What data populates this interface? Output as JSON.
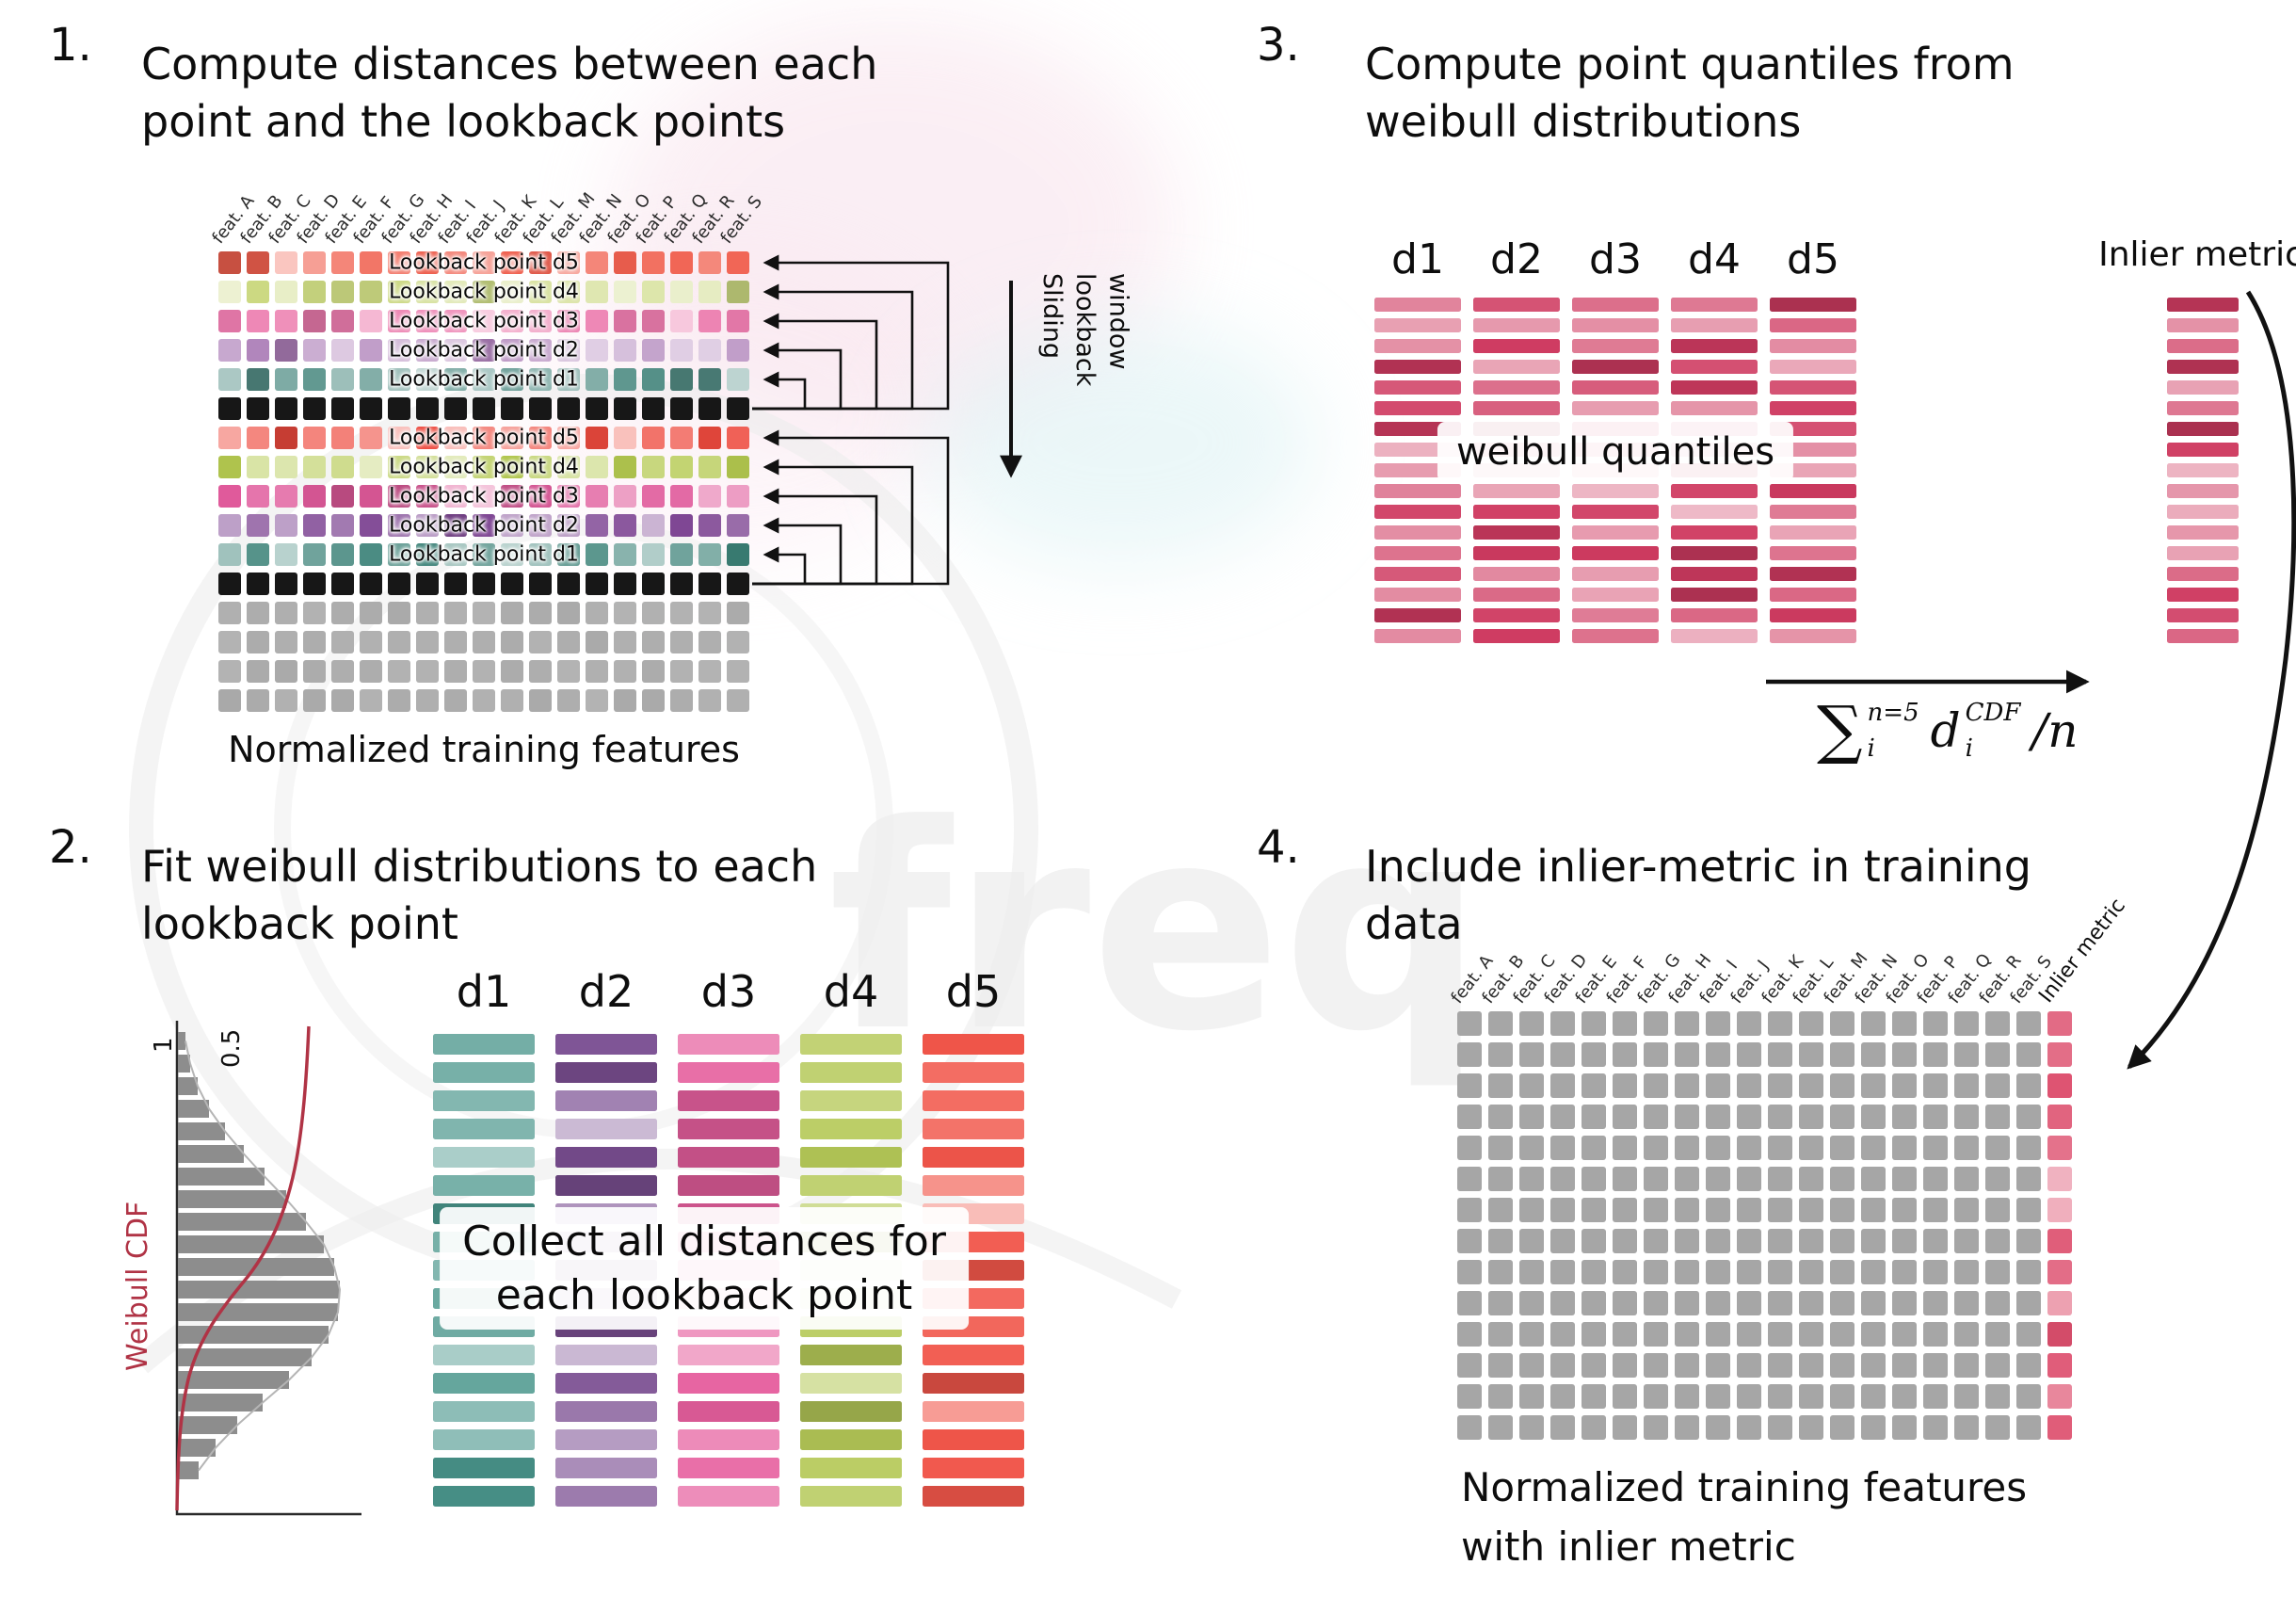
{
  "step1": {
    "number": "1.",
    "title": [
      "Compute distances between each",
      "point and the lookback points"
    ],
    "feature_columns": [
      "feat. A",
      "feat. B",
      "feat. C",
      "feat. D",
      "feat. E",
      "feat. F",
      "feat. G",
      "feat. H",
      "feat. I",
      "feat. J",
      "feat. K",
      "feat. L",
      "feat. M",
      "feat. N",
      "feat. O",
      "feat. P",
      "feat. Q",
      "feat. R",
      "feat. S"
    ],
    "rows": [
      {
        "kind": "lookback",
        "label": "Lookback point d5",
        "color": "#f0604f"
      },
      {
        "kind": "lookback",
        "label": "Lookback point d4",
        "color": "#ccd982"
      },
      {
        "kind": "lookback",
        "label": "Lookback point d3",
        "color": "#ec7cae"
      },
      {
        "kind": "lookback",
        "label": "Lookback point d2",
        "color": "#ab7cb6"
      },
      {
        "kind": "lookback",
        "label": "Lookback point d1",
        "color": "#569189"
      },
      {
        "kind": "current",
        "color": "#171717"
      },
      {
        "kind": "lookback",
        "label": "Lookback point d5",
        "color": "#ee4a3e"
      },
      {
        "kind": "lookback",
        "label": "Lookback point d4",
        "color": "#b4c94f"
      },
      {
        "kind": "lookback",
        "label": "Lookback point d3",
        "color": "#e05a9b"
      },
      {
        "kind": "lookback",
        "label": "Lookback point d2",
        "color": "#7f4794"
      },
      {
        "kind": "lookback",
        "label": "Lookback point d1",
        "color": "#3c8278"
      },
      {
        "kind": "current",
        "color": "#171717"
      },
      {
        "kind": "plain",
        "color": "#a9a9a9"
      },
      {
        "kind": "plain",
        "color": "#a9a9a9"
      },
      {
        "kind": "plain",
        "color": "#a9a9a9"
      },
      {
        "kind": "plain",
        "color": "#a9a9a9"
      }
    ],
    "sliding": [
      "Sliding",
      "lookback",
      "window"
    ],
    "caption": "Normalized training features"
  },
  "step2": {
    "number": "2.",
    "title": [
      "Fit weibull distributions to each",
      "lookback point"
    ],
    "plot": {
      "label": "Weibull CDF",
      "ticks": [
        "1",
        "0.5"
      ],
      "curve_color": "#b03345",
      "bar_color": "#8d8d8d",
      "bars": [
        8,
        13,
        21,
        33,
        50,
        70,
        92,
        115,
        136,
        155,
        166,
        172,
        170,
        160,
        142,
        118,
        90,
        63,
        40,
        22
      ]
    },
    "columns": [
      {
        "label": "d1",
        "color": "#4a968c"
      },
      {
        "label": "d2",
        "color": "#7b4f92"
      },
      {
        "label": "d3",
        "color": "#e65f9e"
      },
      {
        "label": "d4",
        "color": "#b5c958"
      },
      {
        "label": "d5",
        "color": "#f1564a"
      }
    ],
    "bars_per_column": 17,
    "overlay": [
      "Collect all distances for",
      "each lookback point"
    ]
  },
  "step3": {
    "number": "3.",
    "title": [
      "Compute point quantiles from",
      "weibull distributions"
    ],
    "column_labels": [
      "d1",
      "d2",
      "d3",
      "d4",
      "d5"
    ],
    "bar_color": "#cf3b61",
    "bars_per_column": 17,
    "overlay": "weibull quantiles",
    "inlier_label": "Inlier metric",
    "formula": {
      "sum_sign": "∑",
      "sum_sup": "n=5",
      "sum_sub": "i",
      "term": "d",
      "term_sup": "CDF",
      "term_sub": "i",
      "divisor": "/n"
    }
  },
  "step4": {
    "number": "4.",
    "title": [
      "Include inlier-metric in training",
      "data"
    ],
    "feature_columns": [
      "feat. A",
      "feat. B",
      "feat. C",
      "feat. D",
      "feat. E",
      "feat. F",
      "feat. G",
      "feat. H",
      "feat. I",
      "feat. J",
      "feat. K",
      "feat. L",
      "feat. M",
      "feat. N",
      "feat. O",
      "feat. P",
      "feat. Q",
      "feat. R",
      "feat. S"
    ],
    "inlier_column": "Inlier metric",
    "grid": {
      "rows": 14,
      "cols": 20,
      "cell_color": "#a6a6a6",
      "inlier_color": "#dd4f6e"
    },
    "caption": [
      "Normalized training features",
      "with inlier metric"
    ]
  },
  "colors": {
    "arrow": "#111111",
    "current_row": "#171717"
  }
}
